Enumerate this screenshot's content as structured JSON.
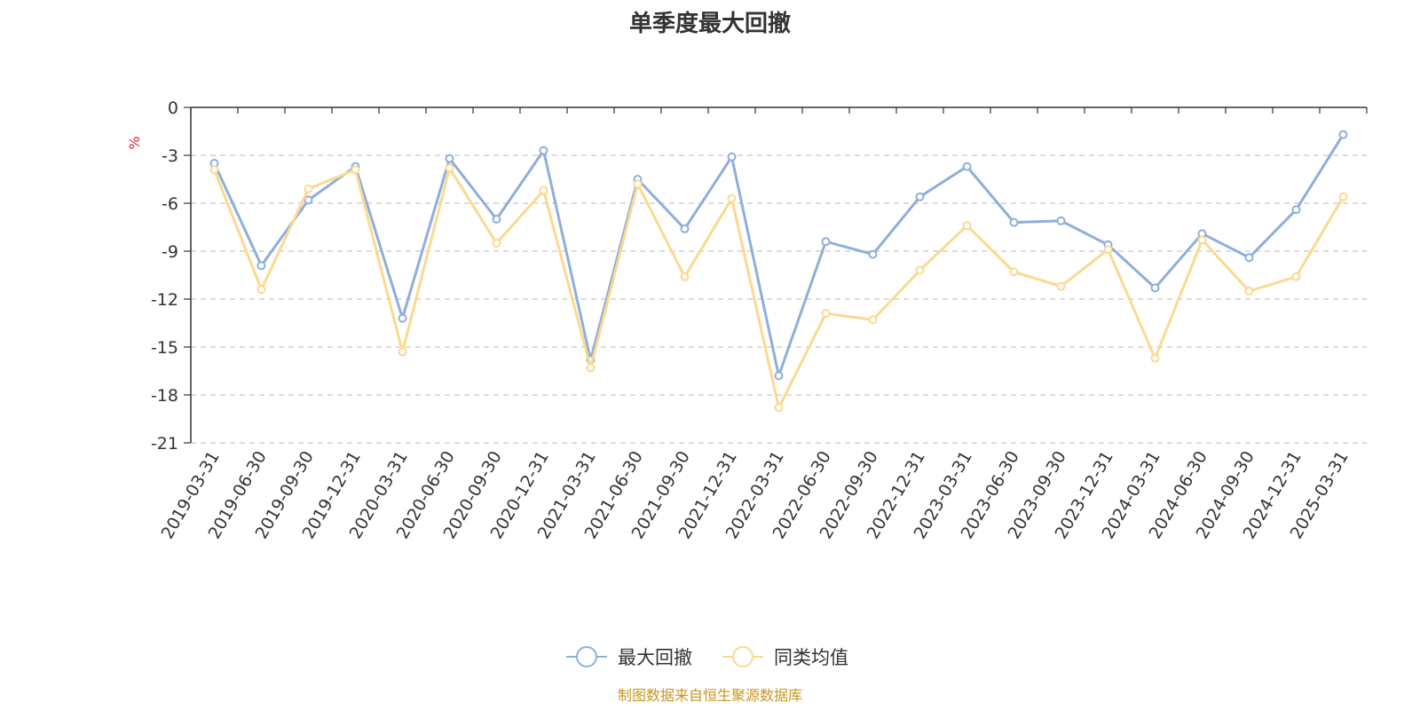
{
  "chart_data": {
    "type": "line",
    "title": "单季度最大回撤",
    "ylabel": "%",
    "ylim": [
      -21,
      0
    ],
    "yticks": [
      0,
      -3,
      -6,
      -9,
      -12,
      -15,
      -18,
      -21
    ],
    "grid": true,
    "legend_position": "bottom",
    "categories": [
      "2019-03-31",
      "2019-06-30",
      "2019-09-30",
      "2019-12-31",
      "2020-03-31",
      "2020-06-30",
      "2020-09-30",
      "2020-12-31",
      "2021-03-31",
      "2021-06-30",
      "2021-09-30",
      "2021-12-31",
      "2022-03-31",
      "2022-06-30",
      "2022-09-30",
      "2022-12-31",
      "2023-03-31",
      "2023-06-30",
      "2023-09-30",
      "2023-12-31",
      "2024-03-31",
      "2024-06-30",
      "2024-09-30",
      "2024-12-31",
      "2025-03-31"
    ],
    "series": [
      {
        "name": "最大回撤",
        "color": "#8eaedc",
        "values": [
          -3.5,
          -9.9,
          -5.8,
          -3.7,
          -13.2,
          -3.2,
          -7.0,
          -2.7,
          -15.8,
          -4.5,
          -7.6,
          -3.1,
          -16.8,
          -8.4,
          -9.2,
          -5.6,
          -3.7,
          -7.2,
          -7.1,
          -8.6,
          -11.3,
          -7.9,
          -9.4,
          -6.4,
          -1.7
        ]
      },
      {
        "name": "同类均值",
        "color": "#fbd990",
        "values": [
          -3.9,
          -11.4,
          -5.1,
          -3.9,
          -15.3,
          -3.8,
          -8.5,
          -5.2,
          -16.3,
          -4.8,
          -10.6,
          -5.7,
          -18.8,
          -12.9,
          -13.3,
          -10.2,
          -7.4,
          -10.3,
          -11.2,
          -8.9,
          -15.7,
          -8.3,
          -11.5,
          -10.6,
          -5.6
        ]
      }
    ]
  },
  "source_note": "制图数据来自恒生聚源数据库"
}
